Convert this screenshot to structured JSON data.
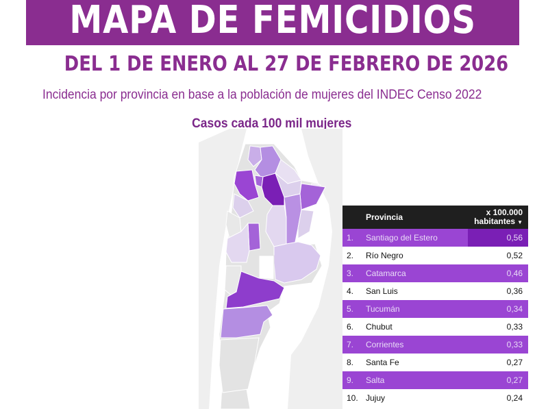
{
  "header": {
    "title": "MAPA DE FEMICIDIOS",
    "date_range": "DEL 1 DE ENERO AL 27 DE FEBRERO DE 2026",
    "subtitle": "Incidencia por provincia en base a la población de mujeres del INDEC Censo 2022",
    "cases_label": "Casos cada 100 mil mujeres"
  },
  "colors": {
    "brand_purple": "#8a2d90",
    "row_highlight": "#9a45d3",
    "table_header": "#1f1f1f",
    "map_base": "#e6e6e6"
  },
  "table": {
    "col_province": "Provincia",
    "col_rate_line1": "x 100.000",
    "col_rate_line2": "habitantes",
    "sort_icon": "sort-desc-icon",
    "rows": [
      {
        "num": "1.",
        "province": "Santiago del Estero",
        "rate": "0,56"
      },
      {
        "num": "2.",
        "province": "Río Negro",
        "rate": "0,52"
      },
      {
        "num": "3.",
        "province": "Catamarca",
        "rate": "0,46"
      },
      {
        "num": "4.",
        "province": "San Luis",
        "rate": "0,36"
      },
      {
        "num": "5.",
        "province": "Tucumán",
        "rate": "0,34"
      },
      {
        "num": "6.",
        "province": "Chubut",
        "rate": "0,33"
      },
      {
        "num": "7.",
        "province": "Corrientes",
        "rate": "0,33"
      },
      {
        "num": "8.",
        "province": "Santa Fe",
        "rate": "0,27"
      },
      {
        "num": "9.",
        "province": "Salta",
        "rate": "0,27"
      },
      {
        "num": "10.",
        "province": "Jujuy",
        "rate": "0,24"
      }
    ]
  }
}
